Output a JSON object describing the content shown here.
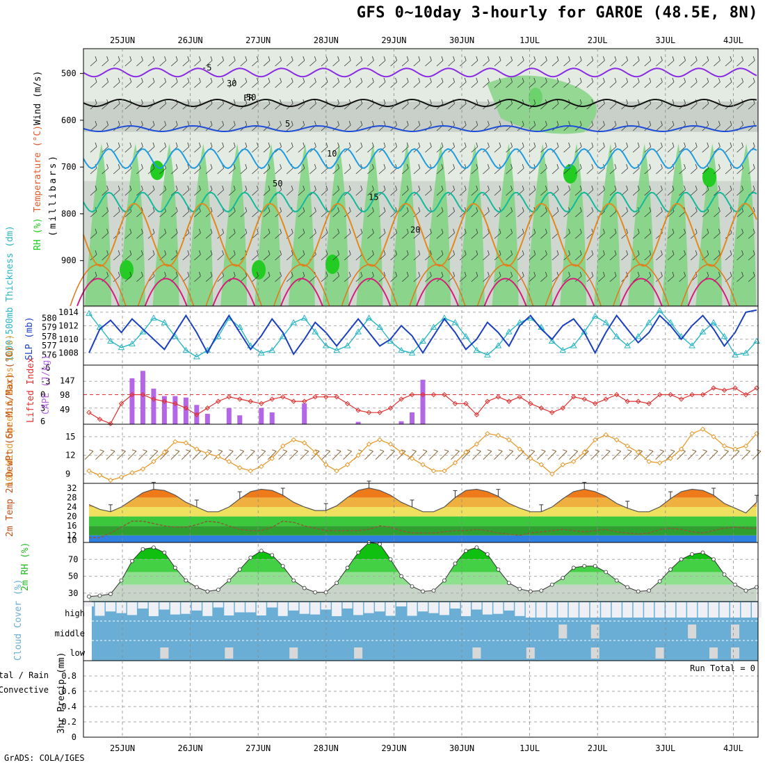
{
  "header": {
    "title": "GFS 0~10day 3-hourly for GAROE (48.5E, 8N)",
    "credit": "GrADS: COLA/IGES"
  },
  "dates": [
    "25JUN",
    "26JUN",
    "27JUN",
    "28JUN",
    "29JUN",
    "30JUN",
    "1JUL",
    "2JUL",
    "3JUL",
    "4JUL"
  ],
  "colors": {
    "rh_dark": "#22cc22",
    "rh_mid": "#7fd37f",
    "rh_grey": "#b8bdb8",
    "rh_light": "#e3ebe3",
    "slp": "#1a3fbf",
    "thickness": "#29b6c4",
    "lifted": "#e03030",
    "cape": "#b366e6",
    "wind10": "#e89a2e",
    "barb": "#8a6a3a",
    "rh2m": "#22bb22",
    "cloud": "#6aaed6",
    "dewpt": "#8a5a3a"
  },
  "chart_data": [
    {
      "type": "heatmap",
      "panel": "upper-air",
      "ylabel_parts": [
        "RH (%)",
        "Temperature (°C)",
        "Wind (m/s)"
      ],
      "yaxis_title": "(millibars)",
      "yticks": [
        500,
        600,
        700,
        800,
        900
      ],
      "ylim": [
        1000,
        450
      ],
      "contour_labels": [
        {
          "label": "-5",
          "level": 498
        },
        {
          "label": "FR",
          "level": 563
        },
        {
          "label": "5",
          "level": 618
        },
        {
          "label": "10",
          "level": 682
        },
        {
          "label": "15",
          "level": 775
        },
        {
          "label": "20",
          "level": 845
        }
      ],
      "rh_labels": [
        "30",
        "50",
        "50"
      ]
    },
    {
      "type": "line",
      "panel": "slp-thickness",
      "ylabel_left": "1000-500mb Thickness (dm)",
      "ylabel_right": "SLP (mb)",
      "yticks_left": [
        576,
        577,
        578,
        579,
        580
      ],
      "yticks_right": [
        1008,
        1010,
        1012,
        1014
      ],
      "series": [
        {
          "name": "SLP (mb)",
          "values": [
            1008,
            1011.5,
            1012.8,
            1011,
            1013,
            1011.5,
            1010,
            1008.5,
            1011,
            1013.5,
            1011,
            1008,
            1011,
            1013.5,
            1011,
            1008.5,
            1010.5,
            1013,
            1011,
            1007.8,
            1010,
            1012.5,
            1011,
            1009,
            1011,
            1013,
            1011,
            1009,
            1010,
            1012,
            1010.5,
            1008,
            1010.5,
            1013,
            1011,
            1008.5,
            1010,
            1012.5,
            1011,
            1009,
            1012,
            1013.5,
            1011.5,
            1010,
            1012,
            1013,
            1011,
            1008,
            1011,
            1013.5,
            1011.5,
            1009.5,
            1011,
            1013.5,
            1012,
            1010,
            1012,
            1013.5,
            1011.5,
            1009,
            1011,
            1014,
            1014.3
          ]
        },
        {
          "name": "1000-500mb Thickness (dm)",
          "values": [
            580.5,
            579,
            577.5,
            576.8,
            577.2,
            578.5,
            580,
            579.5,
            578,
            576.5,
            575.8,
            576.5,
            578,
            580,
            579,
            577,
            576.2,
            576.5,
            578,
            579.5,
            580,
            578.5,
            577,
            576.5,
            577,
            578.5,
            580,
            579,
            577.5,
            576.5,
            576.2,
            577.5,
            579,
            580,
            579.5,
            578,
            576.5,
            576,
            577,
            578.5,
            579.5,
            580,
            579,
            577.5,
            576.5,
            577,
            578.5,
            580.2,
            579.5,
            578,
            577,
            578,
            579.5,
            580.8,
            579.5,
            578,
            577,
            578.5,
            579.5,
            578,
            576,
            576.2,
            577.5
          ]
        }
      ]
    },
    {
      "type": "bar",
      "panel": "cape-lifted",
      "ylabel_left": "Lifted Index",
      "ylabel_right": "CAPE (J/kg)",
      "yticks_left": [
        -6,
        -3,
        0,
        3,
        6
      ],
      "yticks_right": [
        49,
        98,
        147
      ],
      "series": [
        {
          "name": "CAPE (J/kg)",
          "values": [
            0,
            0,
            0,
            0,
            155,
            180,
            120,
            95,
            95,
            90,
            65,
            35,
            0,
            55,
            30,
            0,
            55,
            40,
            0,
            0,
            70,
            0,
            0,
            0,
            0,
            8,
            0,
            0,
            0,
            10,
            40,
            150,
            0,
            0,
            0,
            0,
            0,
            0,
            0,
            0,
            0,
            0,
            0,
            0,
            0,
            0,
            0,
            0,
            0,
            0,
            0,
            0,
            0,
            0,
            0,
            0,
            0,
            0,
            0,
            0,
            0,
            0,
            0
          ]
        },
        {
          "name": "Lifted Index",
          "values": [
            4,
            5.5,
            6.5,
            2,
            0,
            0,
            1,
            1.5,
            2,
            3,
            4.5,
            3,
            1.5,
            0.5,
            1,
            1.5,
            2,
            1,
            0.5,
            1.5,
            1.5,
            0.5,
            0.5,
            0.5,
            2,
            3.5,
            4,
            4,
            3,
            1,
            0,
            0,
            0,
            0,
            2,
            2,
            4.5,
            1.5,
            0.5,
            1.5,
            0.5,
            2,
            3,
            4,
            3,
            0.5,
            1,
            2,
            1,
            0,
            1.5,
            1.5,
            2,
            0,
            0,
            1,
            0,
            0,
            -1.5,
            -1,
            -1.5,
            0,
            -1.5
          ]
        }
      ]
    },
    {
      "type": "line",
      "panel": "wind10m",
      "ylabel": "10m Wind Speed & Barbs (m/s)",
      "yticks": [
        9,
        12,
        15
      ],
      "ylim": [
        7.5,
        17
      ],
      "series": [
        {
          "name": "10m Wind Speed",
          "values": [
            9.5,
            8.8,
            8,
            8.5,
            9.2,
            9.8,
            11,
            12.5,
            14.2,
            14,
            13,
            12.3,
            11.8,
            11,
            10,
            9.5,
            10.2,
            11.5,
            13.5,
            14.5,
            14,
            12.5,
            10.5,
            9.5,
            10.5,
            12,
            13.8,
            14.5,
            13.8,
            12.5,
            11.5,
            10.5,
            9.5,
            9.5,
            10.8,
            12.5,
            13.8,
            15.5,
            15.2,
            14.5,
            13,
            11.5,
            10.5,
            9,
            10.5,
            11,
            12.5,
            14.5,
            15.3,
            14.5,
            13.5,
            12.5,
            11,
            10.8,
            11.5,
            13,
            15.5,
            16.2,
            15,
            13.5,
            13,
            13.5,
            15.5
          ]
        }
      ]
    },
    {
      "type": "area",
      "panel": "temp2m",
      "ylabel": "2m Temp 2m DewPt (6hr Min/Max) (°C)",
      "yticks": [
        10,
        12,
        16,
        20,
        24,
        28,
        32
      ],
      "ylim": [
        9,
        34
      ],
      "series": [
        {
          "name": "2m Temp",
          "values": [
            25,
            23,
            22,
            24,
            27,
            30,
            31.5,
            31,
            29,
            26,
            24,
            22,
            22,
            24,
            27.5,
            30.5,
            31.5,
            31,
            29,
            26,
            24,
            22.5,
            22.5,
            24.5,
            28,
            31,
            32,
            31,
            29,
            26,
            24,
            22,
            22,
            24,
            28,
            31,
            31.5,
            30.5,
            28.5,
            25.5,
            23.5,
            22,
            22,
            24,
            27.5,
            30.5,
            31.5,
            30.5,
            28.5,
            25.5,
            23.5,
            22,
            22,
            24,
            27.5,
            30.5,
            31.5,
            31,
            29,
            25.5,
            23.5,
            21.5,
            26
          ]
        },
        {
          "name": "2m DewPt",
          "values": [
            11,
            11,
            13,
            15.5,
            18,
            18,
            17,
            16,
            15.5,
            15.5,
            16.5,
            18,
            17.5,
            16,
            14.5,
            14,
            14,
            15.5,
            18,
            17.5,
            16,
            15,
            14,
            14,
            14,
            14,
            14.5,
            16,
            15.5,
            14,
            13,
            13,
            13,
            13.5,
            14,
            14,
            14.5,
            14,
            13,
            12.5,
            12,
            13,
            13.5,
            14,
            14.5,
            14,
            13.5,
            14,
            14.5,
            13.5,
            13,
            12.5,
            13,
            14.5,
            15,
            14.5,
            13.5,
            13,
            14,
            15,
            15.5,
            15,
            15
          ]
        }
      ]
    },
    {
      "type": "area",
      "panel": "rh2m",
      "ylabel": "2m RH (%)",
      "yticks": [
        30,
        50,
        70
      ],
      "ylim": [
        20,
        90
      ],
      "series": [
        {
          "name": "2m RH",
          "values": [
            26,
            27,
            29,
            45,
            68,
            82,
            84,
            78,
            60,
            45,
            37,
            32,
            34,
            45,
            58,
            72,
            80,
            75,
            62,
            45,
            36,
            31,
            31,
            42,
            60,
            78,
            90,
            88,
            70,
            50,
            38,
            32,
            33,
            45,
            65,
            80,
            84,
            76,
            58,
            42,
            35,
            32,
            33,
            40,
            48,
            60,
            62,
            62,
            55,
            45,
            37,
            32,
            33,
            44,
            58,
            70,
            76,
            78,
            70,
            52,
            40,
            33,
            37
          ]
        }
      ]
    },
    {
      "type": "bar",
      "panel": "cloud",
      "ylabel": "Cloud Cover (%)",
      "layers": [
        "high",
        "middle",
        "low"
      ]
    },
    {
      "type": "bar",
      "panel": "precip",
      "ylabel_parts": [
        "Total / Rain",
        "Convective",
        "3hr Precip (mm)"
      ],
      "yticks": [
        0,
        0.2,
        0.4,
        0.6,
        0.8
      ],
      "ylim": [
        0,
        1
      ],
      "run_total": "Run Total = 0",
      "values": []
    }
  ]
}
